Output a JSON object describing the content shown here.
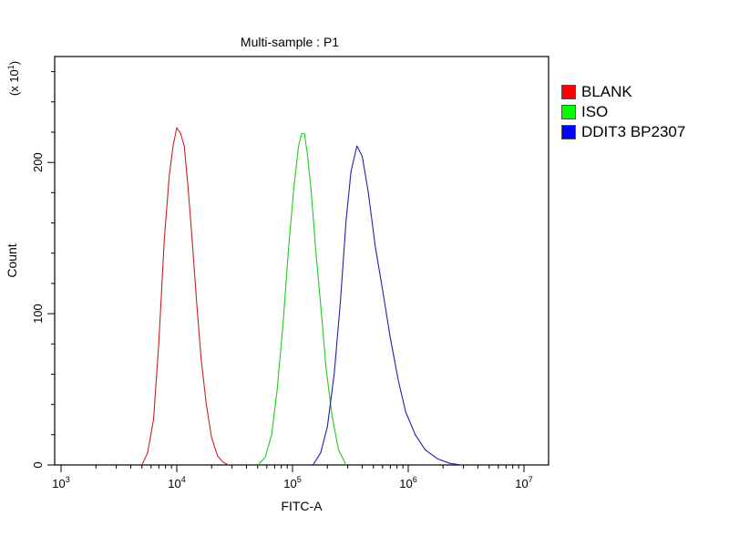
{
  "chart_data": {
    "type": "line",
    "title": "Multi-sample : P1",
    "xlabel": "FITC-A",
    "ylabel": "Count",
    "y_multiplier_label": "(x 10^1)",
    "x_scale": "log",
    "xlim": [
      1000,
      10000000
    ],
    "ylim": [
      0,
      270
    ],
    "x_ticks": [
      {
        "value": 1000,
        "base": "10",
        "exp": "3"
      },
      {
        "value": 10000,
        "base": "10",
        "exp": "4"
      },
      {
        "value": 100000,
        "base": "10",
        "exp": "5"
      },
      {
        "value": 1000000,
        "base": "10",
        "exp": "6"
      },
      {
        "value": 10000000,
        "base": "10",
        "exp": "7"
      }
    ],
    "y_ticks": [
      0,
      100,
      200
    ],
    "legend_position": "right",
    "series": [
      {
        "name": "BLANK",
        "color": "#cc2020",
        "swatch": "#ff0000",
        "x": [
          5000,
          5600,
          6300,
          7000,
          7800,
          8600,
          9300,
          10000,
          10800,
          11600,
          12500,
          13500,
          14800,
          16200,
          18000,
          20000,
          22500,
          25000,
          28000
        ],
        "y": [
          0,
          8,
          30,
          80,
          150,
          190,
          212,
          222,
          220,
          210,
          185,
          150,
          110,
          70,
          40,
          18,
          6,
          2,
          0
        ]
      },
      {
        "name": "ISO",
        "color": "#20cc20",
        "swatch": "#00ff00",
        "x": [
          50000,
          58000,
          66000,
          74000,
          83000,
          93000,
          103000,
          113000,
          120000,
          127000,
          135000,
          145000,
          158000,
          175000,
          195000,
          220000,
          250000,
          290000
        ],
        "y": [
          0,
          5,
          20,
          50,
          95,
          145,
          185,
          210,
          220,
          218,
          205,
          180,
          145,
          105,
          65,
          32,
          10,
          0
        ]
      },
      {
        "name": "DDIT3 BP2307",
        "color": "#2020b0",
        "swatch": "#0000ff",
        "x": [
          150000,
          175000,
          200000,
          230000,
          260000,
          290000,
          320000,
          360000,
          400000,
          450000,
          520000,
          600000,
          700000,
          820000,
          950000,
          1150000,
          1400000,
          1800000,
          2300000,
          2900000
        ],
        "y": [
          0,
          8,
          25,
          60,
          110,
          160,
          195,
          210,
          205,
          180,
          145,
          115,
          85,
          55,
          35,
          20,
          10,
          4,
          1,
          0
        ]
      }
    ]
  }
}
